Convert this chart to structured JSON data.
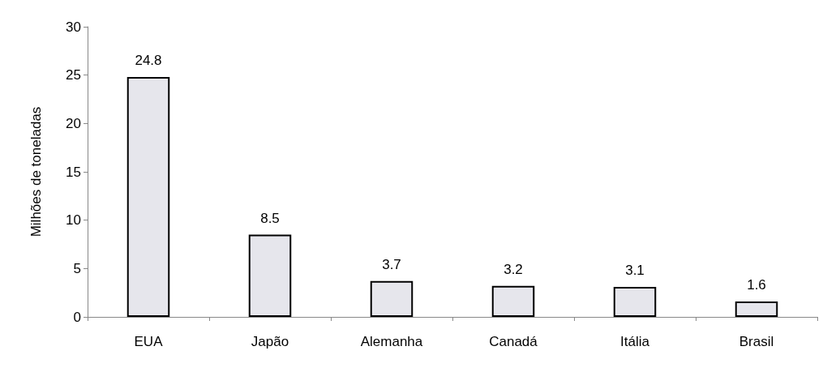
{
  "chart_data": {
    "type": "bar",
    "ylabel": "Milhões de toneladas",
    "categories": [
      "EUA",
      "Japão",
      "Alemanha",
      "Canadá",
      "Itália",
      "Brasil"
    ],
    "values": [
      24.8,
      8.5,
      3.7,
      3.2,
      3.1,
      1.6
    ],
    "color": "#e6e6ec",
    "ylim": [
      0,
      30
    ],
    "yticks": [
      0,
      5,
      10,
      15,
      20,
      25,
      30
    ],
    "grid": false,
    "data_labels": true
  }
}
